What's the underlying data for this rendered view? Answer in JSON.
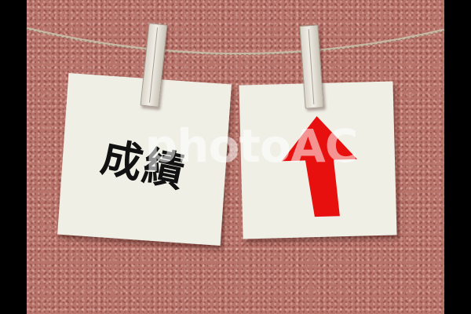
{
  "image": {
    "description_elements": [
      "cork-board",
      "twine",
      "clothespin-left",
      "clothespin-right",
      "note-left",
      "note-right"
    ],
    "note_left": {
      "text": "成績"
    },
    "note_right": {
      "icon": "up-arrow-icon",
      "icon_color": "#e8100e"
    },
    "watermark": {
      "text": "photoAC"
    },
    "colors": {
      "cork": "#b8736a",
      "note": "#efefe6",
      "border": "#000000"
    }
  }
}
